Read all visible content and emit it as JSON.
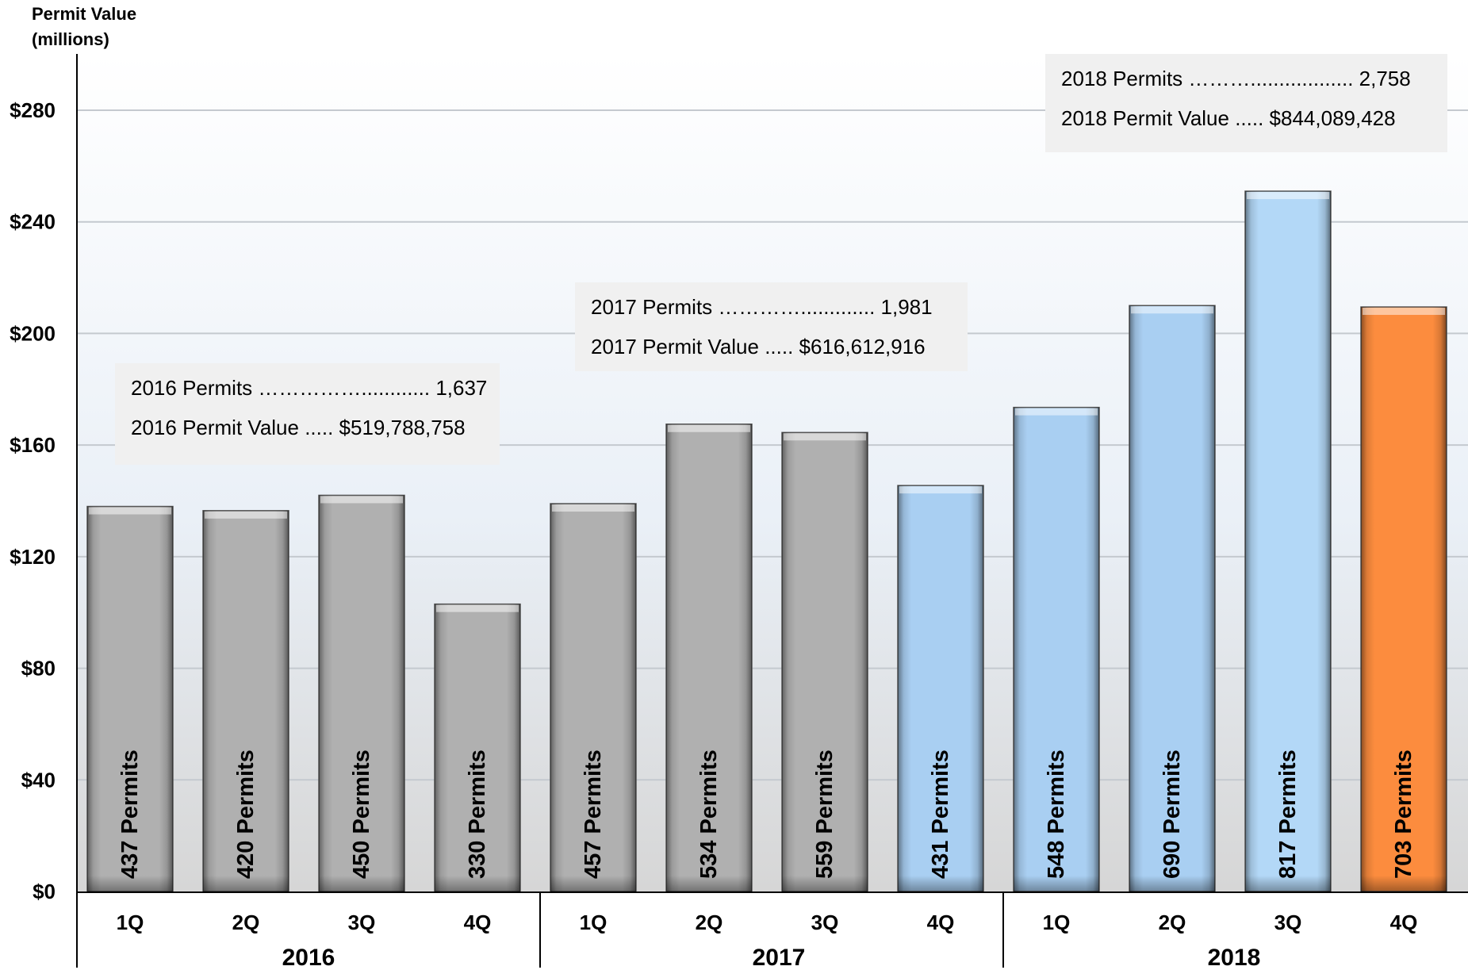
{
  "chart_data": {
    "type": "bar",
    "ylabel_line1": "Permit Value",
    "ylabel_line2": "(millions)",
    "ylim": [
      0,
      300
    ],
    "yticks": [
      0,
      40,
      80,
      120,
      160,
      200,
      240,
      280
    ],
    "ytick_labels": [
      "$0",
      "$40",
      "$80",
      "$120",
      "$160",
      "$200",
      "$240",
      "$280"
    ],
    "grid": true,
    "categories": [
      "1Q",
      "2Q",
      "3Q",
      "4Q",
      "1Q",
      "2Q",
      "3Q",
      "4Q",
      "1Q",
      "2Q",
      "3Q",
      "4Q"
    ],
    "years": [
      "2016",
      "2017",
      "2018"
    ],
    "values": [
      138,
      136.5,
      142,
      103,
      139,
      167.5,
      164.5,
      145.5,
      173.5,
      210,
      251,
      209.5
    ],
    "bar_labels": [
      "437 Permits",
      "420 Permits",
      "450 Permits",
      "330 Permits",
      "457 Permits",
      "534 Permits",
      "559 Permits",
      "431 Permits",
      "548 Permits",
      "690 Permits",
      "817 Permits",
      "703 Permits"
    ],
    "bar_colors": [
      "#b0b0b0",
      "#b0b0b0",
      "#b0b0b0",
      "#b0b0b0",
      "#b0b0b0",
      "#b0b0b0",
      "#b0b0b0",
      "#a9cff2",
      "#a9cff2",
      "#a9cff2",
      "#b3d8f7",
      "#fc8c3e"
    ],
    "annotations": [
      {
        "line1": "2016 Permits ……………............ 1,637",
        "line2": "2016 Permit Value ..... $519,788,758"
      },
      {
        "line1": "2017 Permits …………............. 1,981",
        "line2": "2017 Permit Value ..... $616,612,916"
      },
      {
        "line1": "2018 Permits ……….................. 2,758",
        "line2": "2018 Permit Value ..... $844,089,428"
      }
    ]
  }
}
